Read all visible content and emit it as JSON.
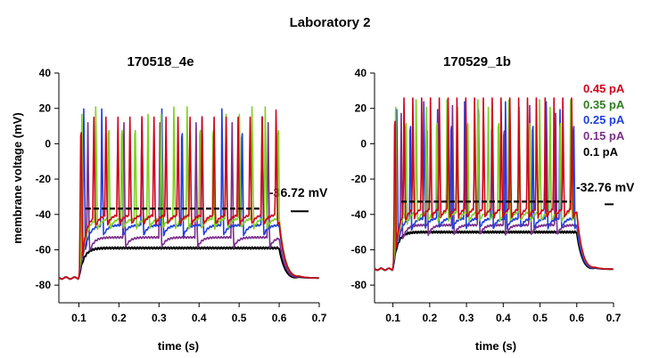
{
  "figure_title": "Laboratory 2",
  "chart_data": [
    {
      "type": "line",
      "title": "170518_4e",
      "xlabel": "time (s)",
      "ylabel": "membrane voltage (mV)",
      "xlim": [
        0.05,
        0.7
      ],
      "ylim": [
        -90,
        40
      ],
      "x_ticks": [
        "0.1",
        "0.2",
        "0.3",
        "0.4",
        "0.5",
        "0.6",
        "0.7"
      ],
      "y_ticks": [
        "-80",
        "-60",
        "-40",
        "-20",
        "0",
        "20",
        "40"
      ],
      "threshold": {
        "value": -36.72,
        "label": "-36.72 mV"
      },
      "rest": -76,
      "step_start": 0.1,
      "step_end": 0.6,
      "series": [
        {
          "current": 0.45,
          "color": "#d0021b",
          "spike_times": [
            0.103,
            0.135,
            0.165,
            0.195,
            0.225,
            0.255,
            0.285,
            0.315,
            0.345,
            0.375,
            0.405,
            0.435,
            0.465,
            0.495,
            0.525,
            0.555,
            0.59
          ],
          "plateau": -40,
          "peak": 22
        },
        {
          "current": 0.35,
          "color": "#7ed321",
          "spike_times": [
            0.105,
            0.14,
            0.172,
            0.205,
            0.238,
            0.27,
            0.303,
            0.335,
            0.368,
            0.4,
            0.433,
            0.465,
            0.498,
            0.53,
            0.563,
            0.595
          ],
          "plateau": -42,
          "peak": 24
        },
        {
          "current": 0.25,
          "color": "#1f3fe0",
          "spike_times": [
            0.11,
            0.155,
            0.205,
            0.255,
            0.305,
            0.355,
            0.405,
            0.455,
            0.505,
            0.555
          ],
          "plateau": -46,
          "peak": 23
        },
        {
          "current": 0.15,
          "color": "#7b2f8a",
          "spike_times": [
            0.12,
            0.21,
            0.3,
            0.39,
            0.48,
            0.57
          ],
          "plateau": -53,
          "peak": 20
        },
        {
          "current": 0.1,
          "color": "#000000",
          "spike_times": [],
          "plateau": -59,
          "peak": 0
        }
      ]
    },
    {
      "type": "line",
      "title": "170529_1b",
      "xlabel": "time (s)",
      "ylabel": "",
      "xlim": [
        0.05,
        0.7
      ],
      "ylim": [
        -90,
        40
      ],
      "x_ticks": [
        "0.1",
        "0.2",
        "0.3",
        "0.4",
        "0.5",
        "0.6",
        "0.7"
      ],
      "y_ticks": [
        "-80",
        "-60",
        "-40",
        "-20",
        "0",
        "20",
        "40"
      ],
      "threshold": {
        "value": -32.76,
        "label": "-32.76 mV"
      },
      "rest": -71,
      "step_start": 0.1,
      "step_end": 0.6,
      "legend": [
        {
          "label": "0.45 pA",
          "color": "#d0021b"
        },
        {
          "label": "0.35 pA",
          "color": "#2e7d1f"
        },
        {
          "label": "0.25 pA",
          "color": "#1f3fe0"
        },
        {
          "label": "0.15 pA",
          "color": "#7b2f8a"
        },
        {
          "label": "0.1 pA",
          "color": "#000000"
        }
      ],
      "series": [
        {
          "current": 0.45,
          "color": "#d0021b",
          "spike_times": [
            0.103,
            0.128,
            0.152,
            0.176,
            0.2,
            0.224,
            0.248,
            0.272,
            0.296,
            0.32,
            0.344,
            0.368,
            0.392,
            0.416,
            0.44,
            0.464,
            0.488,
            0.512,
            0.536,
            0.56,
            0.584
          ],
          "plateau": -36,
          "peak": 29
        },
        {
          "current": 0.35,
          "color": "#7ed321",
          "spike_times": [
            0.105,
            0.133,
            0.161,
            0.189,
            0.217,
            0.245,
            0.273,
            0.301,
            0.329,
            0.357,
            0.385,
            0.413,
            0.441,
            0.469,
            0.497,
            0.525,
            0.553,
            0.581
          ],
          "plateau": -38,
          "peak": 28
        },
        {
          "current": 0.25,
          "color": "#1f3fe0",
          "spike_times": [
            0.108,
            0.145,
            0.182,
            0.219,
            0.256,
            0.293,
            0.33,
            0.367,
            0.404,
            0.441,
            0.478,
            0.515,
            0.552,
            0.589
          ],
          "plateau": -42,
          "peak": 27
        },
        {
          "current": 0.15,
          "color": "#7b2f8a",
          "spike_times": [
            0.12,
            0.19,
            0.26,
            0.33,
            0.4,
            0.47,
            0.54
          ],
          "plateau": -46,
          "peak": 25
        },
        {
          "current": 0.1,
          "color": "#000000",
          "spike_times": [],
          "plateau": -50,
          "peak": 0
        }
      ]
    }
  ]
}
